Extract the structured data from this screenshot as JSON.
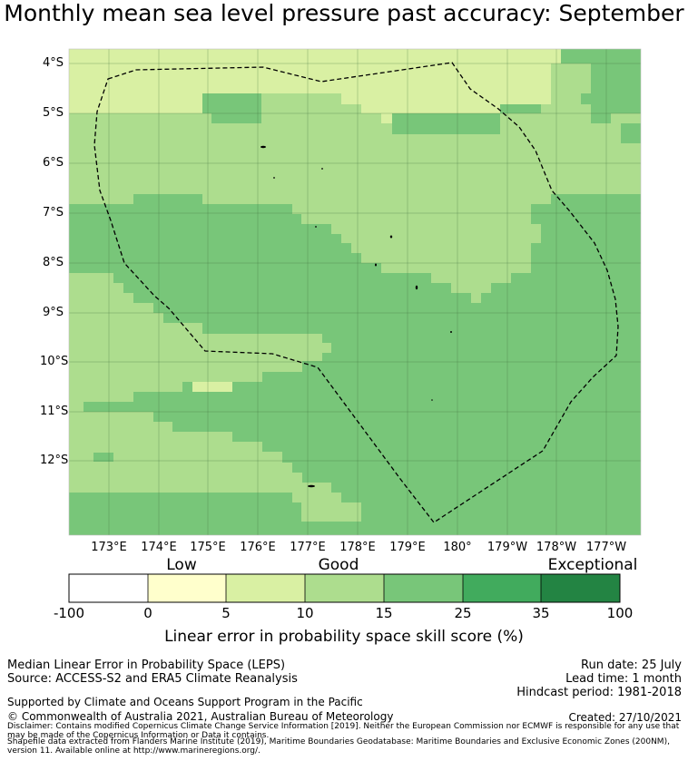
{
  "title": "Monthly mean sea level pressure past accuracy: September",
  "map": {
    "lat_labels": [
      "4°S",
      "5°S",
      "6°S",
      "7°S",
      "8°S",
      "9°S",
      "10°S",
      "11°S",
      "12°S"
    ],
    "lon_labels": [
      "173°E",
      "174°E",
      "175°E",
      "176°E",
      "177°E",
      "178°E",
      "179°E",
      "180°",
      "179°W",
      "178°W",
      "177°W"
    ],
    "boundary_style": "dashed black line (Exclusive Economic Zone)",
    "skill_categories_shown": [
      "10-15",
      "15-25",
      "5-10"
    ]
  },
  "colorbar": {
    "category_labels": [
      "Low",
      "Good",
      "Exceptional"
    ],
    "ticks": [
      "-100",
      "0",
      "5",
      "10",
      "15",
      "25",
      "35",
      "100"
    ],
    "colors": [
      "#ffffff",
      "#ffffcc",
      "#d9f0a3",
      "#addd8e",
      "#78c679",
      "#41ab5d",
      "#238443"
    ],
    "title": "Linear error in probability space skill score (%)"
  },
  "info": {
    "method": "Median Linear Error in Probability Space (LEPS)",
    "source": "Source: ACCESS-S2 and ERA5 Climate Reanalysis",
    "run_date": "Run date: 25 July",
    "lead_time": "Lead time: 1 month",
    "hindcast": "Hindcast period: 1981-2018",
    "support": "Supported by Climate and Oceans Support Program in the Pacific",
    "copyright": "© Commonwealth of Australia 2021, Australian Bureau of Meteorology",
    "created": "Created: 27/10/2021",
    "disclaimer": "Disclaimer: Contains modified Copernicus Climate Change Service Information [2019]. Neither the European Commission nor ECMWF is responsible for any use that may be made of the Copernicus Information or Data it contains.",
    "shapefile": "Shapefile data extracted from Flanders Marine Institute (2019), Maritime Boundaries Geodatabase: Maritime Boundaries and Exclusive Economic Zones (200NM), version 11. Available online at http://www.marineregions.org/."
  }
}
